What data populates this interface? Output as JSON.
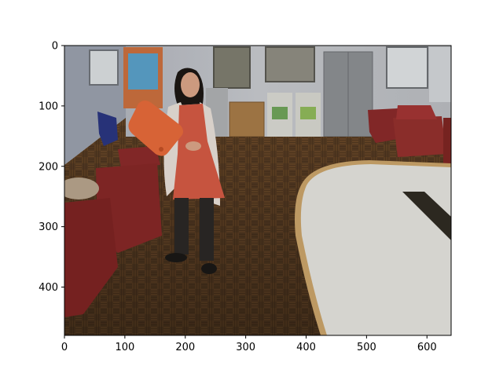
{
  "chart_data": {
    "type": "image",
    "title": "",
    "xlabel": "",
    "ylabel": "",
    "xlim": [
      0,
      640
    ],
    "ylim": [
      480,
      0
    ],
    "x_ticks": [
      0,
      100,
      200,
      300,
      400,
      500,
      600
    ],
    "y_ticks": [
      0,
      100,
      200,
      300,
      400
    ],
    "grid": false,
    "image_subject": "Woman in a red dress holding an orange paddle in an office lounge with red chairs, parquet floor and a white table"
  },
  "colors": {
    "wall": "#b8bcc4",
    "floor": "#6a4a2a",
    "chair": "#8a2a2a",
    "table": "#e3e2dc",
    "table_edge": "#c9a36a",
    "dress": "#d35a43",
    "paddle": "#e56a3a",
    "cabinet": "#8c8f92"
  }
}
